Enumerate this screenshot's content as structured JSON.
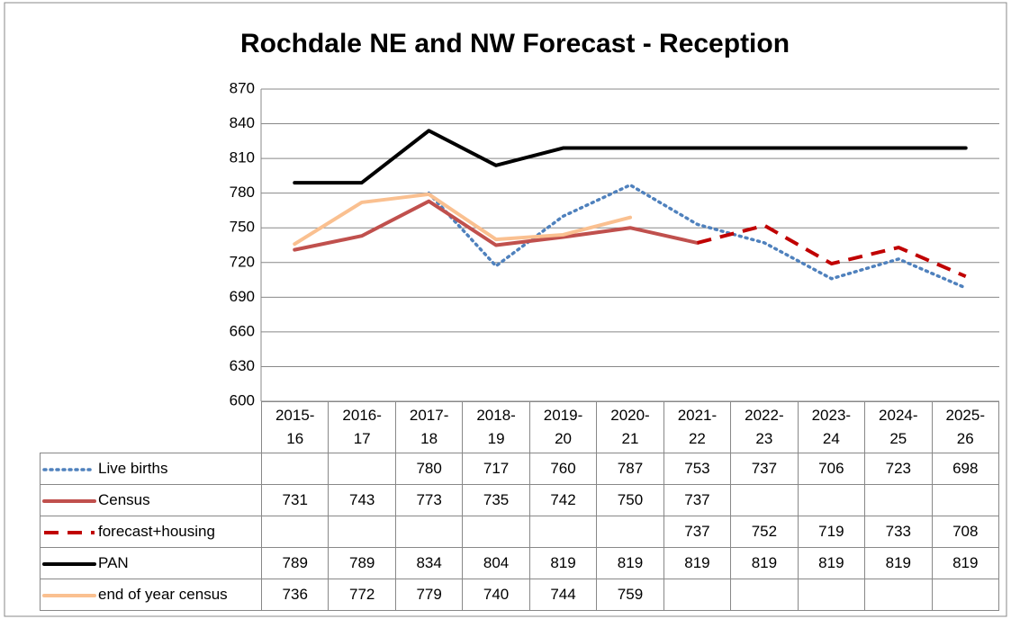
{
  "chart_data": {
    "type": "line",
    "title": "Rochdale NE and NW Forecast - Reception",
    "categories": [
      "2015-16",
      "2016-17",
      "2017-18",
      "2018-19",
      "2019-20",
      "2020-21",
      "2021-22",
      "2022-23",
      "2023-24",
      "2024-25",
      "2025-26"
    ],
    "series": [
      {
        "name": "Live births",
        "color": "#4f81bd",
        "style": "dotted",
        "values": [
          null,
          null,
          780,
          717,
          760,
          787,
          753,
          737,
          706,
          723,
          698
        ]
      },
      {
        "name": "Census",
        "color": "#c0504d",
        "style": "solid",
        "values": [
          731,
          743,
          773,
          735,
          742,
          750,
          737,
          null,
          null,
          null,
          null
        ]
      },
      {
        "name": "forecast+housing",
        "color": "#c00000",
        "style": "dashed",
        "values": [
          null,
          null,
          null,
          null,
          null,
          null,
          737,
          752,
          719,
          733,
          708
        ]
      },
      {
        "name": "PAN",
        "color": "#000000",
        "style": "solid",
        "values": [
          789,
          789,
          834,
          804,
          819,
          819,
          819,
          819,
          819,
          819,
          819
        ]
      },
      {
        "name": "end of year census",
        "color": "#fac090",
        "style": "solid",
        "values": [
          736,
          772,
          779,
          740,
          744,
          759,
          null,
          null,
          null,
          null,
          null
        ]
      }
    ],
    "ylim": [
      600,
      870
    ],
    "yticks": [
      600,
      630,
      660,
      690,
      720,
      750,
      780,
      810,
      840,
      870
    ],
    "grid": true
  }
}
